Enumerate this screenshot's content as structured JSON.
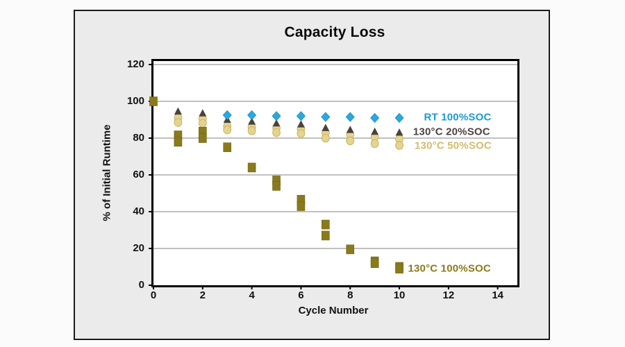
{
  "window": {
    "background": "#FBFBFB",
    "panel_bg": "#EBEBEB",
    "panel_border": "#1A1A1A",
    "plot_bg": "#FFFFFF",
    "axis_color": "#000000"
  },
  "chart_data": {
    "type": "scatter",
    "title": "Capacity Loss",
    "xlabel": "Cycle Number",
    "ylabel": "% of Initial Runtime",
    "xlim": [
      0,
      14.8
    ],
    "ylim": [
      0,
      120
    ],
    "x_ticks": [
      0,
      2,
      4,
      6,
      8,
      10,
      12,
      14
    ],
    "y_ticks": [
      0,
      20,
      40,
      60,
      80,
      100,
      120
    ],
    "grid": "horizontal-only",
    "grid_color": "#ABABAB",
    "legend_position": "inline-annotations-at-series-end",
    "series": [
      {
        "id": "rt-100soc",
        "name": "RT 100%SOC",
        "marker": "diamond",
        "color": "#2BA8DF",
        "stroke": "#1D8FC2",
        "text_color": "#1C9AD6",
        "label": {
          "x": 11.0,
          "y": 91.5
        },
        "points": [
          [
            3,
            92.5
          ],
          [
            4,
            92.5
          ],
          [
            5,
            92
          ],
          [
            6,
            92
          ],
          [
            7,
            91.5
          ],
          [
            8,
            91.5
          ],
          [
            9,
            91
          ],
          [
            10,
            91
          ]
        ]
      },
      {
        "id": "c130-20soc",
        "name": "130°C 20%SOC",
        "marker": "triangle",
        "color": "#4B423E",
        "stroke": "#3A322F",
        "text_color": "#4B423E",
        "label": {
          "x": 10.56,
          "y": 83.4
        },
        "points": [
          [
            1,
            94.5
          ],
          [
            2,
            93.5
          ],
          [
            3,
            90
          ],
          [
            4,
            89
          ],
          [
            5,
            88
          ],
          [
            6,
            87.5
          ],
          [
            7,
            85.5
          ],
          [
            8,
            84.5
          ],
          [
            9,
            83.5
          ],
          [
            10,
            83
          ]
        ]
      },
      {
        "id": "c130-50soc",
        "name": "130°C 50%SOC",
        "marker": "circle",
        "color": "#E4D490",
        "stroke": "#C9B464",
        "text_color": "#D2BC6A",
        "label": {
          "x": 10.62,
          "y": 75.8
        },
        "points": [
          [
            1,
            91
          ],
          [
            1,
            88.5
          ],
          [
            2,
            90.5
          ],
          [
            2,
            88
          ],
          [
            3,
            86.5
          ],
          [
            3,
            84.5
          ],
          [
            4,
            86
          ],
          [
            4,
            84
          ],
          [
            5,
            85.5
          ],
          [
            5,
            83
          ],
          [
            6,
            85
          ],
          [
            6,
            82.5
          ],
          [
            7,
            83
          ],
          [
            7,
            80
          ],
          [
            8,
            82
          ],
          [
            8,
            78.5
          ],
          [
            9,
            80.5
          ],
          [
            9,
            77
          ],
          [
            10,
            79.5
          ],
          [
            10,
            76
          ]
        ]
      },
      {
        "id": "c130-100soc",
        "name": "130°C 100%SOC",
        "marker": "square",
        "color": "#897A1B",
        "stroke": "#6F6316",
        "text_color": "#8A7B1C",
        "label": {
          "x": 10.35,
          "y": 9.0
        },
        "points": [
          [
            0,
            100
          ],
          [
            1,
            81.5
          ],
          [
            1,
            78
          ],
          [
            2,
            83.5
          ],
          [
            2,
            80
          ],
          [
            3,
            75
          ],
          [
            4,
            64
          ],
          [
            5,
            57
          ],
          [
            5,
            54
          ],
          [
            6,
            46.5
          ],
          [
            6,
            43
          ],
          [
            7,
            33
          ],
          [
            7,
            27
          ],
          [
            8,
            19.5
          ],
          [
            9,
            13
          ],
          [
            9,
            12
          ],
          [
            10,
            10
          ],
          [
            10,
            9
          ]
        ]
      }
    ]
  }
}
